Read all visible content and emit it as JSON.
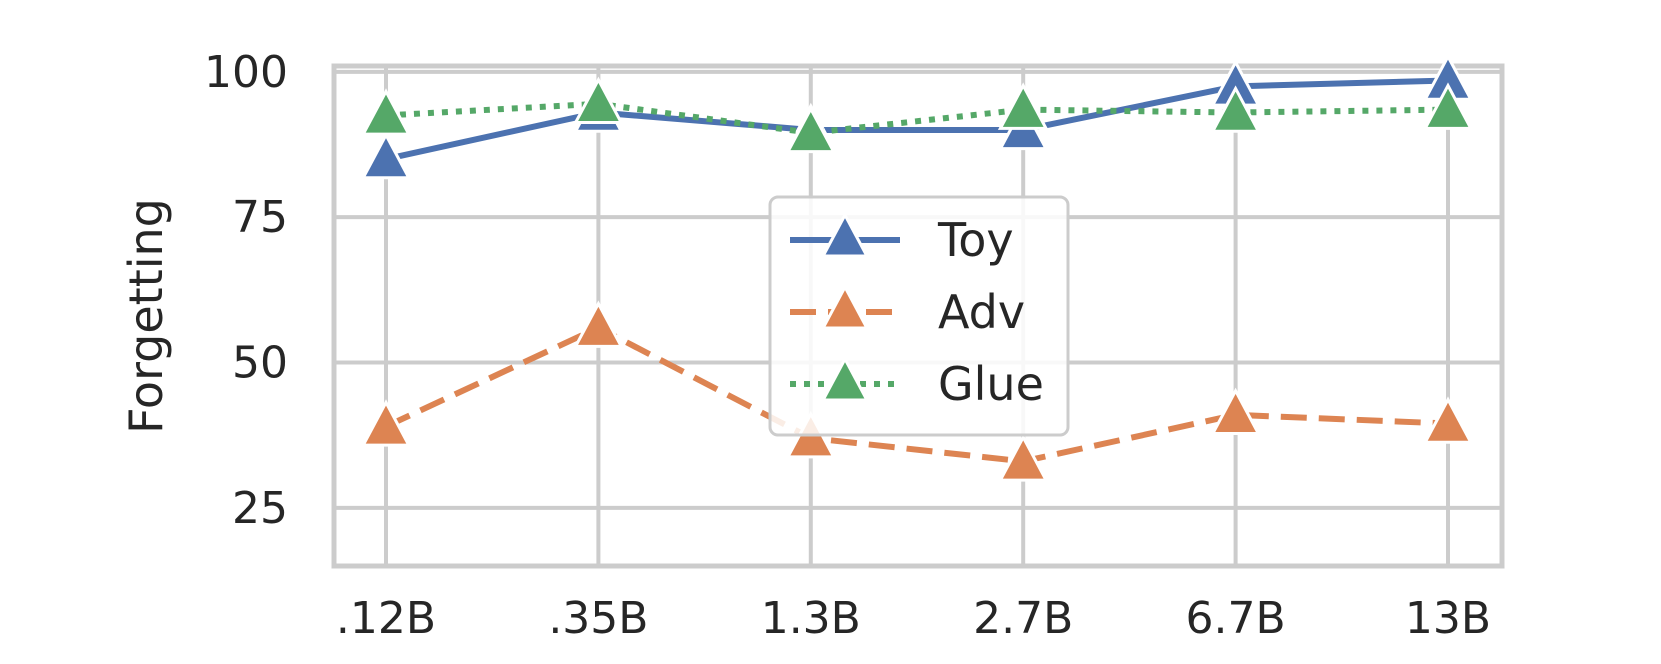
{
  "chart_data": {
    "type": "line",
    "categories": [
      ".12B",
      ".35B",
      "1.3B",
      "2.7B",
      "6.7B",
      "13B"
    ],
    "ylabel": "Forgetting",
    "xlabel": "",
    "ylim": [
      15,
      101
    ],
    "yticks": [
      25,
      50,
      75,
      100
    ],
    "grid": true,
    "legend_position": "center",
    "series": [
      {
        "name": "Toy",
        "values": [
          85,
          93,
          90,
          90,
          97.5,
          98.5
        ],
        "color": "#4c72b0",
        "dash": "solid",
        "marker": "triangle"
      },
      {
        "name": "Adv",
        "values": [
          39,
          56,
          37,
          33,
          41,
          39.5
        ],
        "color": "#dd8452",
        "dash": "dashed",
        "marker": "triangle"
      },
      {
        "name": "Glue",
        "values": [
          92.5,
          94.5,
          89.5,
          93.5,
          93,
          93.5
        ],
        "color": "#55a868",
        "dash": "dotted",
        "marker": "triangle"
      }
    ]
  }
}
